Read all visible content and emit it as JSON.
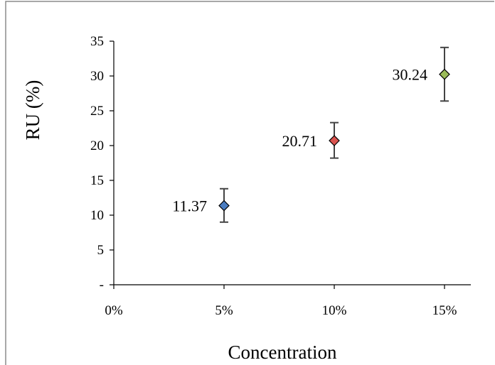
{
  "chart_data": {
    "type": "scatter",
    "xlabel": "Concentration",
    "ylabel": "RU (%)",
    "x_tick_labels": [
      "0%",
      "5%",
      "10%",
      "15%"
    ],
    "y_tick_labels": [
      "-",
      "5",
      "10",
      "15",
      "20",
      "25",
      "30",
      "35"
    ],
    "xlim": [
      0,
      0.16
    ],
    "ylim": [
      0,
      35
    ],
    "grid": false,
    "legend": "none",
    "points": [
      {
        "x": 0.05,
        "y": 11.37,
        "label": "11.37",
        "err_low": 9.0,
        "err_high": 13.8,
        "color": "#4a7cc0"
      },
      {
        "x": 0.1,
        "y": 20.71,
        "label": "20.71",
        "err_low": 18.2,
        "err_high": 23.3,
        "color": "#d9534f"
      },
      {
        "x": 0.15,
        "y": 30.24,
        "label": "30.24",
        "err_low": 26.4,
        "err_high": 34.1,
        "color": "#9bbb59"
      }
    ]
  }
}
